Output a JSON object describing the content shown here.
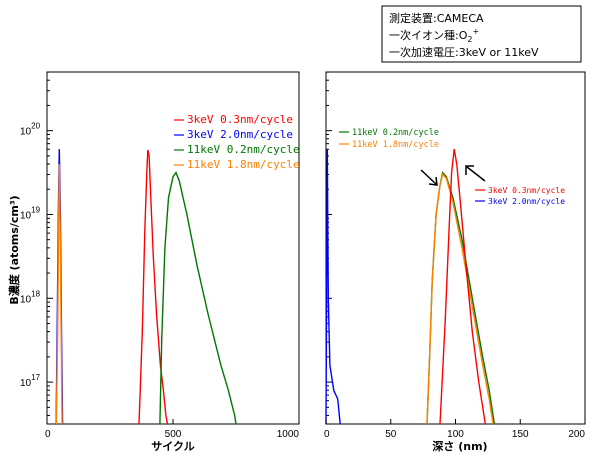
{
  "info_box": {
    "line1": "測定装置:CAMECA",
    "line2_prefix": "一次イオン種:O",
    "line2_sub": "2",
    "line2_sup": "+",
    "line3": "一次加速電圧:3keV or 11keV"
  },
  "y_axis_title": "B濃度 (atoms/cm³)",
  "chart_data": [
    {
      "type": "line",
      "xlabel": "サイクル",
      "ylabel": "B濃度 (atoms/cm³)",
      "xlim": [
        0,
        1000
      ],
      "ylim_log10": [
        16.5,
        20.7
      ],
      "y_scale": "log",
      "x_ticks": [
        "0",
        "500",
        "1000"
      ],
      "y_ticks": [
        {
          "base": "10",
          "exp": "17"
        },
        {
          "base": "10",
          "exp": "18"
        },
        {
          "base": "10",
          "exp": "19"
        },
        {
          "base": "10",
          "exp": "20"
        }
      ],
      "series": [
        {
          "name": "3keV 0.3nm/cycle",
          "color": "#ff0000",
          "points": [
            [
              365,
              16.5
            ],
            [
              378,
              17.6
            ],
            [
              388,
              18.8
            ],
            [
              396,
              19.5
            ],
            [
              400,
              19.77
            ],
            [
              405,
              19.7
            ],
            [
              412,
              19.2
            ],
            [
              422,
              18.5
            ],
            [
              435,
              17.8
            ],
            [
              450,
              17.2
            ],
            [
              462,
              16.9
            ],
            [
              472,
              16.6
            ],
            [
              478,
              16.5
            ]
          ]
        },
        {
          "name": "3keV 2.0nm/cycle",
          "color": "#0000ff",
          "points": [
            [
              36,
              16.5
            ],
            [
              40,
              17.5
            ],
            [
              45,
              19.0
            ],
            [
              49,
              19.78
            ],
            [
              53,
              19.0
            ],
            [
              58,
              17.5
            ],
            [
              62,
              16.5
            ]
          ]
        },
        {
          "name": "11keV 0.2nm/cycle",
          "color": "#007700",
          "points": [
            [
              448,
              16.5
            ],
            [
              455,
              17.5
            ],
            [
              468,
              18.6
            ],
            [
              482,
              19.2
            ],
            [
              500,
              19.45
            ],
            [
              512,
              19.5
            ],
            [
              525,
              19.4
            ],
            [
              555,
              19.0
            ],
            [
              595,
              18.4
            ],
            [
              640,
              17.8
            ],
            [
              690,
              17.2
            ],
            [
              720,
              16.9
            ],
            [
              745,
              16.6
            ],
            [
              750,
              16.5
            ]
          ]
        },
        {
          "name": "11keV 1.8nm/cycle",
          "color": "#ff8000",
          "points": [
            [
              37,
              16.5
            ],
            [
              42,
              17.5
            ],
            [
              46,
              18.9
            ],
            [
              49,
              19.6
            ],
            [
              52,
              18.9
            ],
            [
              57,
              17.3
            ],
            [
              60,
              16.5
            ]
          ]
        }
      ]
    },
    {
      "type": "line",
      "xlabel": "深さ (nm)",
      "ylabel": "",
      "xlim": [
        0,
        200
      ],
      "ylim_log10": [
        16.5,
        20.7
      ],
      "y_scale": "log",
      "x_ticks": [
        "0",
        "50",
        "100",
        "150",
        "200"
      ],
      "series": [
        {
          "name": "11keV 0.2nm/cycle",
          "color": "#007700",
          "points": [
            [
              78,
              16.5
            ],
            [
              80,
              17.3
            ],
            [
              82,
              18.2
            ],
            [
              85,
              19.0
            ],
            [
              88,
              19.35
            ],
            [
              90,
              19.5
            ],
            [
              93,
              19.45
            ],
            [
              98,
              19.2
            ],
            [
              105,
              18.7
            ],
            [
              113,
              18.0
            ],
            [
              121,
              17.3
            ],
            [
              126,
              16.9
            ],
            [
              130,
              16.5
            ]
          ]
        },
        {
          "name": "11keV 1.8nm/cycle",
          "color": "#ff8000",
          "points": [
            [
              78,
              16.5
            ],
            [
              80,
              17.3
            ],
            [
              82,
              18.2
            ],
            [
              85,
              19.0
            ],
            [
              88,
              19.35
            ],
            [
              90,
              19.48
            ],
            [
              93,
              19.43
            ],
            [
              98,
              19.15
            ],
            [
              105,
              18.6
            ],
            [
              113,
              17.9
            ],
            [
              121,
              17.2
            ],
            [
              126,
              16.8
            ],
            [
              129,
              16.5
            ]
          ]
        },
        {
          "name": "3keV 0.3nm/cycle",
          "color": "#ff0000",
          "points": [
            [
              88,
              16.5
            ],
            [
              92,
              17.7
            ],
            [
              95,
              18.8
            ],
            [
              97,
              19.5
            ],
            [
              99,
              19.78
            ],
            [
              101,
              19.6
            ],
            [
              104,
              19.1
            ],
            [
              108,
              18.4
            ],
            [
              113,
              17.6
            ],
            [
              118,
              17.0
            ],
            [
              122,
              16.6
            ],
            [
              123,
              16.5
            ]
          ]
        },
        {
          "name": "3keV 2.0nm/cycle",
          "color": "#0000ff",
          "points": [
            [
              0,
              16.5
            ],
            [
              0.5,
              18.0
            ],
            [
              1.0,
              19.78
            ],
            [
              1.8,
              18.0
            ],
            [
              3,
              17.2
            ],
            [
              6,
              16.9
            ],
            [
              9,
              16.8
            ],
            [
              11,
              16.5
            ]
          ]
        }
      ]
    }
  ]
}
